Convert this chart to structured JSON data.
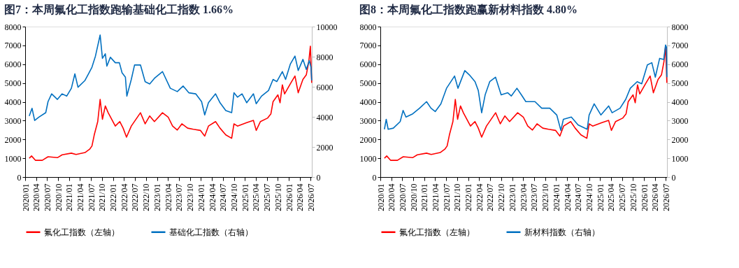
{
  "chart_data": [
    {
      "type": "line",
      "title": "图7：本周氟化工指数跑输基础化工指数 1.66%",
      "xlim": [
        "2020-01",
        "2026-07-10"
      ],
      "xticks": [
        {
          "value": "2020-01",
          "label": "2020/01"
        },
        {
          "value": "2020-04",
          "label": "2020/04"
        },
        {
          "value": "2020-07",
          "label": "2020/07"
        },
        {
          "value": "2020-10",
          "label": "2020/10"
        },
        {
          "value": "2021-01",
          "label": "2021/01"
        },
        {
          "value": "2021-04",
          "label": "2021/04"
        },
        {
          "value": "2021-07",
          "label": "2021/07"
        },
        {
          "value": "2021-10",
          "label": "2021/10"
        },
        {
          "value": "2022-01",
          "label": "2022/01"
        },
        {
          "value": "2022-04",
          "label": "2022/04"
        },
        {
          "value": "2022-07",
          "label": "2022/07"
        },
        {
          "value": "2022-10",
          "label": "2022/10"
        },
        {
          "value": "2023-01",
          "label": "2023/01"
        },
        {
          "value": "2023-04",
          "label": "2023/04"
        },
        {
          "value": "2023-07",
          "label": "2023/07"
        },
        {
          "value": "2023-10",
          "label": "2023/10"
        },
        {
          "value": "2024-01",
          "label": "2024/01"
        },
        {
          "value": "2024-04",
          "label": "2024/04"
        },
        {
          "value": "2024-07",
          "label": "2024/07"
        },
        {
          "value": "2024-10",
          "label": "2024/10"
        },
        {
          "value": "2025-01",
          "label": "2025/01"
        },
        {
          "value": "2025-04",
          "label": "2025/04"
        },
        {
          "value": "2025-07",
          "label": "2025/07"
        },
        {
          "value": "2025-10",
          "label": "2025/10"
        },
        {
          "value": "2026-01",
          "label": "2026/01"
        },
        {
          "value": "2026-04",
          "label": "2026/04"
        },
        {
          "value": "2026-07",
          "label": "2026/07"
        }
      ],
      "ylim": [
        0,
        8000
      ],
      "yticks": [
        0,
        1000,
        2000,
        3000,
        4000,
        5000,
        6000,
        7000,
        8000
      ],
      "y2lim": [
        0,
        10000
      ],
      "y2ticks": [
        0,
        2000,
        4000,
        6000,
        8000,
        10000
      ],
      "grid": false,
      "legend": "bottom",
      "line_style": "solid",
      "marker": "none",
      "series": [
        {
          "name": "氟化工指数（左轴）",
          "color": "#ff0000",
          "x": [
            "2020-02-04",
            "2020-02-23",
            "2020-03-26",
            "2020-05-22",
            "2020-07-09",
            "2020-09-25",
            "2020-11-03",
            "2021-01-19",
            "2021-02-27",
            "2021-05-12",
            "2021-06-20",
            "2021-07-09",
            "2021-07-28",
            "2021-08-26",
            "2021-09-15",
            "2021-10-04",
            "2021-10-28",
            "2021-11-21",
            "2022-01-19",
            "2022-02-25",
            "2022-03-25",
            "2022-04-22",
            "2022-06-01",
            "2022-08-16",
            "2022-09-24",
            "2022-11-01",
            "2022-12-10",
            "2023-02-15",
            "2023-04-03",
            "2023-05-10",
            "2023-06-18",
            "2023-07-26",
            "2023-09-12",
            "2023-10-30",
            "2023-12-27",
            "2024-02-01",
            "2024-03-03",
            "2024-05-01",
            "2024-06-07",
            "2024-07-25",
            "2024-09-12",
            "2024-10-01",
            "2024-10-30",
            "2025-01-15",
            "2025-03-12",
            "2025-04-04",
            "2025-05-09",
            "2025-07-06",
            "2025-08-04",
            "2025-08-22",
            "2025-10-01",
            "2025-10-19",
            "2025-11-07",
            "2025-11-26",
            "2026-01-13",
            "2026-02-20",
            "2026-03-19",
            "2026-04-27",
            "2026-05-25",
            "2026-06-15",
            "2026-06-28",
            "2026-07-09"
          ],
          "values": [
            1000,
            1120,
            890,
            890,
            1080,
            1030,
            1180,
            1270,
            1200,
            1300,
            1480,
            1650,
            2240,
            2950,
            4130,
            3070,
            3780,
            3420,
            2710,
            2950,
            2600,
            2120,
            2710,
            3420,
            2830,
            3250,
            2950,
            3420,
            3190,
            2710,
            2500,
            2830,
            2600,
            2540,
            2480,
            2180,
            2710,
            2950,
            2600,
            2240,
            2060,
            2830,
            2710,
            2890,
            3010,
            2480,
            2950,
            3130,
            3360,
            4010,
            4370,
            3950,
            4900,
            4420,
            4960,
            5370,
            4480,
            5190,
            5430,
            6140,
            6960,
            5010
          ]
        },
        {
          "name": "基础化工指数（右轴）",
          "color": "#0070c0",
          "axis": "y2",
          "x": [
            "2020-02-04",
            "2020-02-27",
            "2020-03-20",
            "2020-04-24",
            "2020-06-20",
            "2020-07-09",
            "2020-08-08",
            "2020-09-25",
            "2020-11-03",
            "2020-12-11",
            "2021-01-19",
            "2021-02-17",
            "2021-03-15",
            "2021-05-12",
            "2021-06-10",
            "2021-07-09",
            "2021-08-07",
            "2021-09-15",
            "2021-10-04",
            "2021-10-28",
            "2021-11-10",
            "2021-12-09",
            "2022-01-19",
            "2022-02-22",
            "2022-03-16",
            "2022-04-13",
            "2022-04-25",
            "2022-06-01",
            "2022-06-28",
            "2022-08-16",
            "2022-09-24",
            "2022-11-01",
            "2022-12-10",
            "2023-02-15",
            "2023-04-21",
            "2023-06-18",
            "2023-08-06",
            "2023-09-22",
            "2023-11-18",
            "2024-01-06",
            "2024-02-01",
            "2024-03-03",
            "2024-05-01",
            "2024-06-07",
            "2024-07-25",
            "2024-09-12",
            "2024-10-01",
            "2024-10-30",
            "2024-12-07",
            "2025-01-15",
            "2025-03-12",
            "2025-04-04",
            "2025-05-18",
            "2025-07-15",
            "2025-08-22",
            "2025-09-22",
            "2025-11-07",
            "2025-12-04",
            "2026-01-13",
            "2026-02-20",
            "2026-03-19",
            "2026-04-27",
            "2026-05-25",
            "2026-06-19",
            "2026-07-03",
            "2026-07-09"
          ],
          "values": [
            4060,
            4570,
            3760,
            3980,
            4280,
            5010,
            5530,
            5160,
            5530,
            5380,
            5900,
            6860,
            5970,
            6420,
            6860,
            7300,
            8040,
            9440,
            7890,
            8190,
            7370,
            7960,
            7600,
            7600,
            6930,
            6640,
            5380,
            6490,
            7450,
            7450,
            6340,
            6190,
            6560,
            7010,
            5900,
            5680,
            6050,
            5600,
            5530,
            5010,
            4130,
            4940,
            5530,
            4940,
            4420,
            4280,
            5600,
            5310,
            5530,
            4940,
            5530,
            4870,
            5380,
            5750,
            6490,
            6340,
            7010,
            6490,
            7520,
            8040,
            7080,
            7820,
            7150,
            7740,
            7300,
            6420
          ]
        }
      ]
    },
    {
      "type": "line",
      "title": "图8：本周氟化工指数跑赢新材料指数 4.80%",
      "xlim": [
        "2020-01",
        "2026-07-10"
      ],
      "xticks": [
        {
          "value": "2020-01",
          "label": "2020/01"
        },
        {
          "value": "2020-04",
          "label": "2020/04"
        },
        {
          "value": "2020-07",
          "label": "2020/07"
        },
        {
          "value": "2020-10",
          "label": "2020/10"
        },
        {
          "value": "2021-01",
          "label": "2021/01"
        },
        {
          "value": "2021-04",
          "label": "2021/04"
        },
        {
          "value": "2021-07",
          "label": "2021/07"
        },
        {
          "value": "2021-10",
          "label": "2021/10"
        },
        {
          "value": "2022-01",
          "label": "2022/01"
        },
        {
          "value": "2022-04",
          "label": "2022/04"
        },
        {
          "value": "2022-07",
          "label": "2022/07"
        },
        {
          "value": "2022-10",
          "label": "2022/10"
        },
        {
          "value": "2023-01",
          "label": "2023/01"
        },
        {
          "value": "2023-04",
          "label": "2023/04"
        },
        {
          "value": "2023-07",
          "label": "2023/07"
        },
        {
          "value": "2023-10",
          "label": "2023/10"
        },
        {
          "value": "2024-01",
          "label": "2024/01"
        },
        {
          "value": "2024-04",
          "label": "2024/04"
        },
        {
          "value": "2024-07",
          "label": "2024/07"
        },
        {
          "value": "2024-10",
          "label": "2024/10"
        },
        {
          "value": "2025-01",
          "label": "2025/01"
        },
        {
          "value": "2025-04",
          "label": "2025/04"
        },
        {
          "value": "2025-07",
          "label": "2025/07"
        },
        {
          "value": "2025-10",
          "label": "2025/10"
        },
        {
          "value": "2026-01",
          "label": "2026/01"
        },
        {
          "value": "2026-04",
          "label": "2026/04"
        },
        {
          "value": "2026-07",
          "label": "2026/07"
        }
      ],
      "ylim": [
        0,
        8000
      ],
      "yticks": [
        0,
        1000,
        2000,
        3000,
        4000,
        5000,
        6000,
        7000,
        8000
      ],
      "y2lim": [
        0,
        8000
      ],
      "y2ticks": [
        0,
        1000,
        2000,
        3000,
        4000,
        5000,
        6000,
        7000,
        8000
      ],
      "grid": false,
      "legend": "bottom",
      "line_style": "solid",
      "marker": "none",
      "series": [
        {
          "name": "氟化工指数（左轴）",
          "color": "#ff0000",
          "x": [
            "2020-02-04",
            "2020-02-23",
            "2020-03-26",
            "2020-05-22",
            "2020-07-09",
            "2020-09-25",
            "2020-11-03",
            "2021-01-19",
            "2021-02-27",
            "2021-05-12",
            "2021-06-20",
            "2021-07-09",
            "2021-07-28",
            "2021-08-26",
            "2021-09-15",
            "2021-10-04",
            "2021-10-28",
            "2021-11-21",
            "2022-01-19",
            "2022-02-25",
            "2022-03-25",
            "2022-04-22",
            "2022-06-01",
            "2022-08-16",
            "2022-09-24",
            "2022-11-01",
            "2022-12-10",
            "2023-02-15",
            "2023-04-03",
            "2023-05-10",
            "2023-06-18",
            "2023-07-26",
            "2023-09-12",
            "2023-10-30",
            "2023-12-27",
            "2024-02-01",
            "2024-03-03",
            "2024-05-01",
            "2024-06-07",
            "2024-07-25",
            "2024-09-12",
            "2024-10-01",
            "2024-10-30",
            "2025-01-15",
            "2025-03-12",
            "2025-04-04",
            "2025-05-09",
            "2025-07-06",
            "2025-08-04",
            "2025-08-22",
            "2025-10-01",
            "2025-10-19",
            "2025-11-07",
            "2025-11-26",
            "2026-01-13",
            "2026-02-20",
            "2026-03-19",
            "2026-04-27",
            "2026-05-25",
            "2026-06-15",
            "2026-06-28",
            "2026-07-09"
          ],
          "values": [
            1000,
            1120,
            890,
            890,
            1080,
            1030,
            1180,
            1270,
            1200,
            1300,
            1480,
            1650,
            2240,
            2950,
            4130,
            3070,
            3780,
            3420,
            2710,
            2950,
            2600,
            2120,
            2710,
            3420,
            2830,
            3250,
            2950,
            3420,
            3190,
            2710,
            2500,
            2830,
            2600,
            2540,
            2480,
            2180,
            2710,
            2950,
            2600,
            2240,
            2060,
            2830,
            2710,
            2890,
            3010,
            2480,
            2950,
            3130,
            3360,
            4010,
            4370,
            3950,
            4900,
            4420,
            4960,
            5370,
            4480,
            5190,
            5430,
            6140,
            6960,
            5010
          ]
        },
        {
          "name": "新材料指数（右轴）",
          "color": "#0070c0",
          "axis": "y2",
          "x": [
            "2020-02-04",
            "2020-02-19",
            "2020-03-06",
            "2020-04-18",
            "2020-06-14",
            "2020-07-08",
            "2020-08-01",
            "2020-09-26",
            "2020-11-22",
            "2021-01-19",
            "2021-02-25",
            "2021-04-01",
            "2021-05-18",
            "2021-07-04",
            "2021-09-09",
            "2021-10-07",
            "2021-12-03",
            "2022-01-10",
            "2022-02-26",
            "2022-03-25",
            "2022-04-22",
            "2022-05-21",
            "2022-06-28",
            "2022-08-15",
            "2022-10-01",
            "2022-11-25",
            "2022-12-24",
            "2023-02-09",
            "2023-03-18",
            "2023-04-24",
            "2023-07-09",
            "2023-09-03",
            "2023-11-09",
            "2024-01-06",
            "2024-02-09",
            "2024-03-01",
            "2024-05-06",
            "2024-07-01",
            "2024-09-15",
            "2024-10-01",
            "2024-11-12",
            "2025-01-07",
            "2025-03-12",
            "2025-04-10",
            "2025-06-15",
            "2025-08-01",
            "2025-09-08",
            "2025-11-04",
            "2025-12-12",
            "2026-01-28",
            "2026-03-06",
            "2026-04-04",
            "2026-05-10",
            "2026-06-13",
            "2026-06-28",
            "2026-07-06",
            "2026-07-09"
          ],
          "values": [
            2540,
            3070,
            2540,
            2600,
            2950,
            3540,
            3190,
            3360,
            3660,
            4010,
            3660,
            3480,
            3890,
            4720,
            5370,
            4720,
            5660,
            5430,
            5070,
            4600,
            3420,
            4370,
            5070,
            5310,
            4370,
            4480,
            4310,
            4720,
            4370,
            4010,
            4010,
            3660,
            3660,
            3300,
            2480,
            3070,
            3190,
            2770,
            2540,
            3300,
            3890,
            3300,
            3780,
            3420,
            3660,
            4130,
            4720,
            5070,
            4960,
            5960,
            6080,
            5310,
            6310,
            6250,
            7020,
            6900,
            5310
          ]
        }
      ]
    }
  ]
}
